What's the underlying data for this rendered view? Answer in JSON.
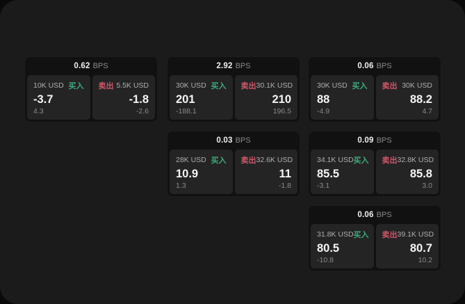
{
  "labels": {
    "bps_unit": "BPS",
    "buy": "买入",
    "sell": "卖出"
  },
  "colors": {
    "panel_background": "#1b1b1b",
    "card_background": "#111111",
    "side_panel_background": "#242424",
    "buy_accent": "#3fa87c",
    "sell_accent": "#cf5668"
  },
  "cards": [
    {
      "bps": "0.62",
      "buy": {
        "size": "10K USD",
        "value": "-3.7",
        "change": "4.3"
      },
      "sell": {
        "size": "5.5K USD",
        "value": "-1.8",
        "change": "-2.6"
      }
    },
    {
      "bps": "2.92",
      "buy": {
        "size": "30K USD",
        "value": "201",
        "change": "-188.1"
      },
      "sell": {
        "size": "30.1K USD",
        "value": "210",
        "change": "196.5"
      }
    },
    {
      "bps": "0.06",
      "buy": {
        "size": "30K USD",
        "value": "88",
        "change": "-4.9"
      },
      "sell": {
        "size": "30K USD",
        "value": "88.2",
        "change": "4.7"
      }
    },
    {
      "bps": "0.03",
      "buy": {
        "size": "28K USD",
        "value": "10.9",
        "change": "1.3"
      },
      "sell": {
        "size": "32.6K USD",
        "value": "11",
        "change": "-1.8"
      }
    },
    {
      "bps": "0.09",
      "buy": {
        "size": "34.1K USD",
        "value": "85.5",
        "change": "-3.1"
      },
      "sell": {
        "size": "32.8K USD",
        "value": "85.8",
        "change": "3.0"
      }
    },
    {
      "bps": "0.06",
      "buy": {
        "size": "31.8K USD",
        "value": "80.5",
        "change": "-10.8"
      },
      "sell": {
        "size": "39.1K USD",
        "value": "80.7",
        "change": "10.2"
      }
    }
  ]
}
